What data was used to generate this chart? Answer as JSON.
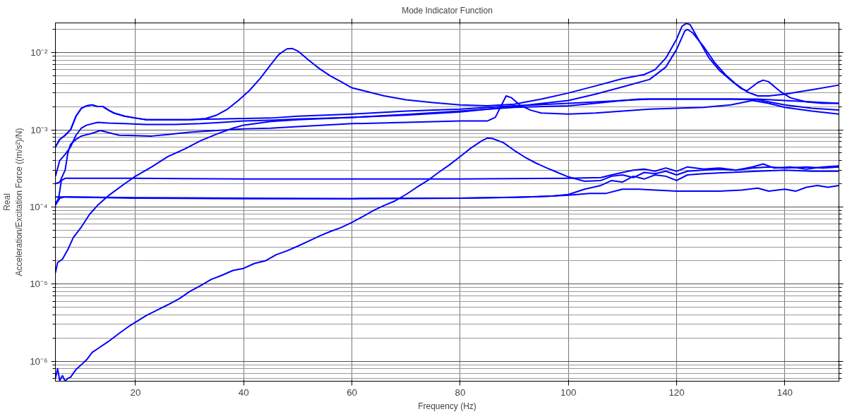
{
  "chart_data": {
    "type": "line",
    "title": "Mode Indicator Function",
    "xlabel": "Frequency (Hz)",
    "ylabel": "Real\nAcceleration/Excitation Force ((m/s²)/N)",
    "log": true,
    "grid": true,
    "xlim": [
      5.2,
      150
    ],
    "xticks": [
      20,
      40,
      60,
      80,
      100,
      120,
      140
    ],
    "ylim": [
      5.5e-07,
      0.0243
    ],
    "yticks": [
      {
        "value": 1e-06,
        "label": "10⁻⁶"
      },
      {
        "value": 1e-05,
        "label": "10⁻⁵"
      },
      {
        "value": 0.0001,
        "label": "10⁻⁴"
      },
      {
        "value": 0.001,
        "label": "10⁻³"
      },
      {
        "value": 0.01,
        "label": "10⁻²"
      }
    ],
    "series": [
      {
        "color": "#0000ff",
        "x": [
          5.2,
          6,
          7,
          8,
          9,
          10,
          11,
          12,
          13,
          14,
          15,
          16,
          18,
          20,
          22,
          26,
          30,
          33,
          35,
          37,
          39,
          41,
          43,
          45,
          46.5,
          48,
          49,
          50,
          52,
          54,
          56,
          58,
          60,
          63,
          66,
          70,
          75,
          80,
          85,
          90,
          95,
          100,
          105,
          110,
          114,
          116,
          118,
          120,
          121,
          121.8,
          122.5,
          124,
          126,
          128,
          130,
          132,
          133,
          135,
          136,
          137,
          139,
          141,
          144,
          147,
          150
        ],
        "values": [
          0.0006,
          0.00075,
          0.00085,
          0.001,
          0.0015,
          0.0019,
          0.00205,
          0.0021,
          0.002,
          0.002,
          0.0018,
          0.00165,
          0.0015,
          0.00142,
          0.00135,
          0.00135,
          0.00135,
          0.0014,
          0.00155,
          0.00185,
          0.0024,
          0.0032,
          0.0046,
          0.007,
          0.0095,
          0.0112,
          0.0113,
          0.0105,
          0.008,
          0.0062,
          0.005,
          0.0042,
          0.0035,
          0.0031,
          0.00275,
          0.00245,
          0.00225,
          0.0021,
          0.00205,
          0.00215,
          0.0025,
          0.003,
          0.0037,
          0.0046,
          0.0052,
          0.006,
          0.0085,
          0.015,
          0.022,
          0.024,
          0.023,
          0.015,
          0.0085,
          0.0058,
          0.0044,
          0.0034,
          0.0032,
          0.0041,
          0.0044,
          0.0042,
          0.0032,
          0.0026,
          0.0023,
          0.0022,
          0.0022
        ]
      },
      {
        "color": "#0000ff",
        "x": [
          5.2,
          6,
          7,
          8,
          9,
          10,
          11,
          12,
          13,
          14,
          15,
          16,
          18,
          20,
          22,
          26,
          30,
          33,
          35,
          40,
          45,
          50,
          60,
          70,
          80,
          90,
          100,
          110,
          115,
          120,
          130,
          135,
          140,
          145,
          150
        ],
        "values": [
          0.0006,
          0.00075,
          0.00085,
          0.001,
          0.0015,
          0.0019,
          0.00205,
          0.0021,
          0.002,
          0.002,
          0.0018,
          0.00165,
          0.0015,
          0.00142,
          0.00135,
          0.00135,
          0.00135,
          0.00137,
          0.00138,
          0.0014,
          0.00142,
          0.0015,
          0.0016,
          0.00175,
          0.00185,
          0.00205,
          0.0022,
          0.0024,
          0.0025,
          0.0025,
          0.0025,
          0.0025,
          0.0024,
          0.0023,
          0.0022
        ]
      },
      {
        "color": "#0000ff",
        "x": [
          5.2,
          6,
          7,
          8,
          9,
          10,
          11,
          13,
          15,
          18,
          22,
          27,
          32,
          36,
          40,
          45,
          50,
          60,
          70,
          80,
          90,
          100,
          105,
          110,
          115,
          118,
          120,
          121.5,
          122,
          123,
          125,
          127,
          129,
          131,
          133,
          135,
          137,
          140,
          145,
          150
        ],
        "values": [
          0.00025,
          0.0004,
          0.00048,
          0.0006,
          0.00085,
          0.00105,
          0.00115,
          0.00125,
          0.00122,
          0.0012,
          0.00117,
          0.00117,
          0.0012,
          0.00125,
          0.0013,
          0.00133,
          0.00138,
          0.00145,
          0.00155,
          0.0017,
          0.002,
          0.0024,
          0.0029,
          0.0036,
          0.0045,
          0.0065,
          0.011,
          0.019,
          0.02,
          0.018,
          0.012,
          0.0075,
          0.0052,
          0.0039,
          0.0031,
          0.00275,
          0.00275,
          0.0029,
          0.0033,
          0.0038
        ]
      },
      {
        "color": "#0000ff",
        "x": [
          5.2,
          6,
          7,
          7.5,
          8,
          9,
          10,
          12,
          13.5,
          15,
          17,
          20,
          23,
          26,
          30,
          35,
          40,
          45,
          50,
          60,
          70,
          80,
          85,
          86.5,
          87.5,
          88.5,
          89.5,
          91,
          93,
          95,
          100,
          105,
          110,
          115,
          120,
          125,
          130,
          134,
          137,
          140,
          145,
          150
        ],
        "values": [
          0.0002,
          0.00021,
          0.0003,
          0.0005,
          0.00065,
          0.00075,
          0.00083,
          0.0009,
          0.00098,
          0.00092,
          0.00085,
          0.00084,
          0.00083,
          0.00087,
          0.00093,
          0.00098,
          0.00103,
          0.00105,
          0.0011,
          0.0012,
          0.00125,
          0.0013,
          0.0013,
          0.00145,
          0.002,
          0.00275,
          0.0026,
          0.0021,
          0.0018,
          0.00165,
          0.0016,
          0.00165,
          0.00175,
          0.00185,
          0.0019,
          0.00195,
          0.0021,
          0.0024,
          0.0022,
          0.00195,
          0.00175,
          0.0016
        ]
      },
      {
        "color": "#0000ff",
        "x": [
          5.2,
          5.6,
          6.5,
          7.5,
          8.5,
          10,
          11.5,
          13,
          15,
          18,
          20,
          23,
          26,
          29,
          32,
          35,
          38,
          40,
          45,
          50,
          60,
          70,
          80,
          90,
          100,
          105,
          110,
          113,
          120,
          125,
          130,
          135,
          140,
          145,
          150
        ],
        "values": [
          1.4e-05,
          1.9e-05,
          2.1e-05,
          2.8e-05,
          4e-05,
          5.5e-05,
          8e-05,
          0.000105,
          0.00014,
          0.0002,
          0.00025,
          0.00033,
          0.00045,
          0.00056,
          0.00072,
          0.00088,
          0.00105,
          0.00115,
          0.00128,
          0.00135,
          0.00145,
          0.00158,
          0.00175,
          0.00195,
          0.00205,
          0.0022,
          0.0024,
          0.0025,
          0.0025,
          0.0025,
          0.0025,
          0.00245,
          0.0021,
          0.0019,
          0.0018
        ]
      },
      {
        "color": "#0000ff",
        "x": [
          5.2,
          5.8,
          6.3,
          7,
          20,
          40,
          60,
          80,
          100,
          106,
          108,
          110,
          112,
          114,
          116,
          118,
          120,
          122,
          125,
          128,
          131,
          134,
          136,
          138,
          141,
          144,
          147,
          150
        ],
        "values": [
          0.00011,
          0.00013,
          0.00022,
          0.000235,
          0.000235,
          0.00023,
          0.00023,
          0.00023,
          0.000235,
          0.00024,
          0.00026,
          0.00028,
          0.0003,
          0.00031,
          0.00029,
          0.00032,
          0.00029,
          0.00033,
          0.00031,
          0.00032,
          0.0003,
          0.00033,
          0.00036,
          0.00032,
          0.00033,
          0.00031,
          0.00033,
          0.00034
        ]
      },
      {
        "color": "#0000ff",
        "x": [
          5.2,
          7,
          20,
          40,
          60,
          80,
          90,
          97,
          100,
          104,
          107,
          110,
          113,
          116,
          120,
          124,
          128,
          132,
          135,
          137,
          140,
          142,
          144,
          146,
          148,
          150
        ],
        "values": [
          0.000135,
          0.000135,
          0.00013,
          0.000128,
          0.000128,
          0.00013,
          0.000133,
          0.000138,
          0.000142,
          0.00015,
          0.00015,
          0.00017,
          0.00017,
          0.000165,
          0.00016,
          0.00016,
          0.00016,
          0.000165,
          0.000175,
          0.00016,
          0.00017,
          0.00016,
          0.00018,
          0.00019,
          0.00018,
          0.00019
        ]
      },
      {
        "color": "#0000ff",
        "x": [
          5.2,
          6,
          7,
          20,
          40,
          60,
          80,
          90,
          97,
          100,
          103,
          106,
          108,
          110,
          112,
          114,
          116,
          118,
          120,
          122,
          125,
          130,
          135,
          140,
          145,
          150
        ],
        "values": [
          0.000105,
          0.00013,
          0.000135,
          0.000132,
          0.00013,
          0.000128,
          0.00013,
          0.000133,
          0.000138,
          0.000145,
          0.00017,
          0.00019,
          0.00022,
          0.00021,
          0.00025,
          0.00023,
          0.00026,
          0.00025,
          0.00022,
          0.00026,
          0.00027,
          0.00028,
          0.00029,
          0.0003,
          0.00029,
          0.00029
        ]
      },
      {
        "color": "#0000ff",
        "x": [
          5.2,
          5.6,
          6,
          6.5,
          7,
          7.5,
          8,
          9,
          10,
          11,
          12,
          13,
          15,
          17,
          19,
          20,
          22,
          24,
          26,
          28,
          30,
          32,
          34,
          36,
          38,
          40,
          42,
          44,
          46,
          48,
          50,
          52,
          54,
          56,
          58,
          60,
          62,
          64,
          66,
          68,
          70,
          72,
          74,
          76,
          78,
          80,
          82,
          84,
          85,
          86,
          88,
          90,
          92,
          94,
          96,
          98,
          100,
          103,
          106,
          108,
          110,
          112,
          114,
          116,
          118,
          120,
          122,
          125,
          128,
          131,
          134,
          137,
          140,
          144,
          147,
          150
        ],
        "values": [
          6e-07,
          8e-07,
          5.6e-07,
          6.5e-07,
          5.5e-07,
          6e-07,
          6.2e-07,
          7.8e-07,
          9e-07,
          1.05e-06,
          1.3e-06,
          1.45e-06,
          1.8e-06,
          2.3e-06,
          2.9e-06,
          3.2e-06,
          3.9e-06,
          4.6e-06,
          5.4e-06,
          6.4e-06,
          8e-06,
          9.5e-06,
          1.15e-05,
          1.3e-05,
          1.5e-05,
          1.6e-05,
          1.85e-05,
          2e-05,
          2.4e-05,
          2.7e-05,
          3.1e-05,
          3.6e-05,
          4.2e-05,
          4.8e-05,
          5.4e-05,
          6.3e-05,
          7.5e-05,
          9e-05,
          0.000105,
          0.00012,
          0.000145,
          0.00018,
          0.00022,
          0.00028,
          0.00035,
          0.00045,
          0.00058,
          0.00072,
          0.00078,
          0.00077,
          0.00068,
          0.00054,
          0.00044,
          0.00037,
          0.00032,
          0.00028,
          0.000245,
          0.000215,
          0.00022,
          0.00025,
          0.00026,
          0.00024,
          0.00028,
          0.00027,
          0.00029,
          0.00026,
          0.00029,
          0.0003,
          0.00031,
          0.0003,
          0.00032,
          0.00033,
          0.00032,
          0.00033,
          0.00032,
          0.00033
        ]
      }
    ]
  }
}
